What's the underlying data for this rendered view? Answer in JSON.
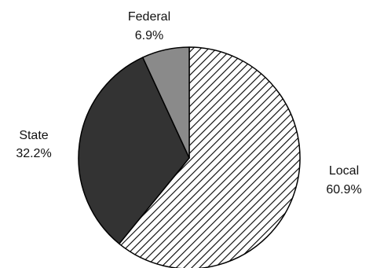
{
  "chart_data": {
    "type": "pie",
    "title": "",
    "slices": [
      {
        "label": "Local",
        "value": 60.9,
        "value_label": "60.9%",
        "fill": "diagonal-hatch",
        "color": "#ffffff",
        "stroke": "#000000"
      },
      {
        "label": "State",
        "value": 32.2,
        "value_label": "32.2%",
        "fill": "solid",
        "color": "#333333",
        "stroke": "#000000"
      },
      {
        "label": "Federal",
        "value": 6.9,
        "value_label": "6.9%",
        "fill": "solid",
        "color": "#8a8a8a",
        "stroke": "#000000"
      }
    ],
    "start": "12 o'clock",
    "direction": "clockwise",
    "legend": "none",
    "label_placement": "outside slices"
  }
}
